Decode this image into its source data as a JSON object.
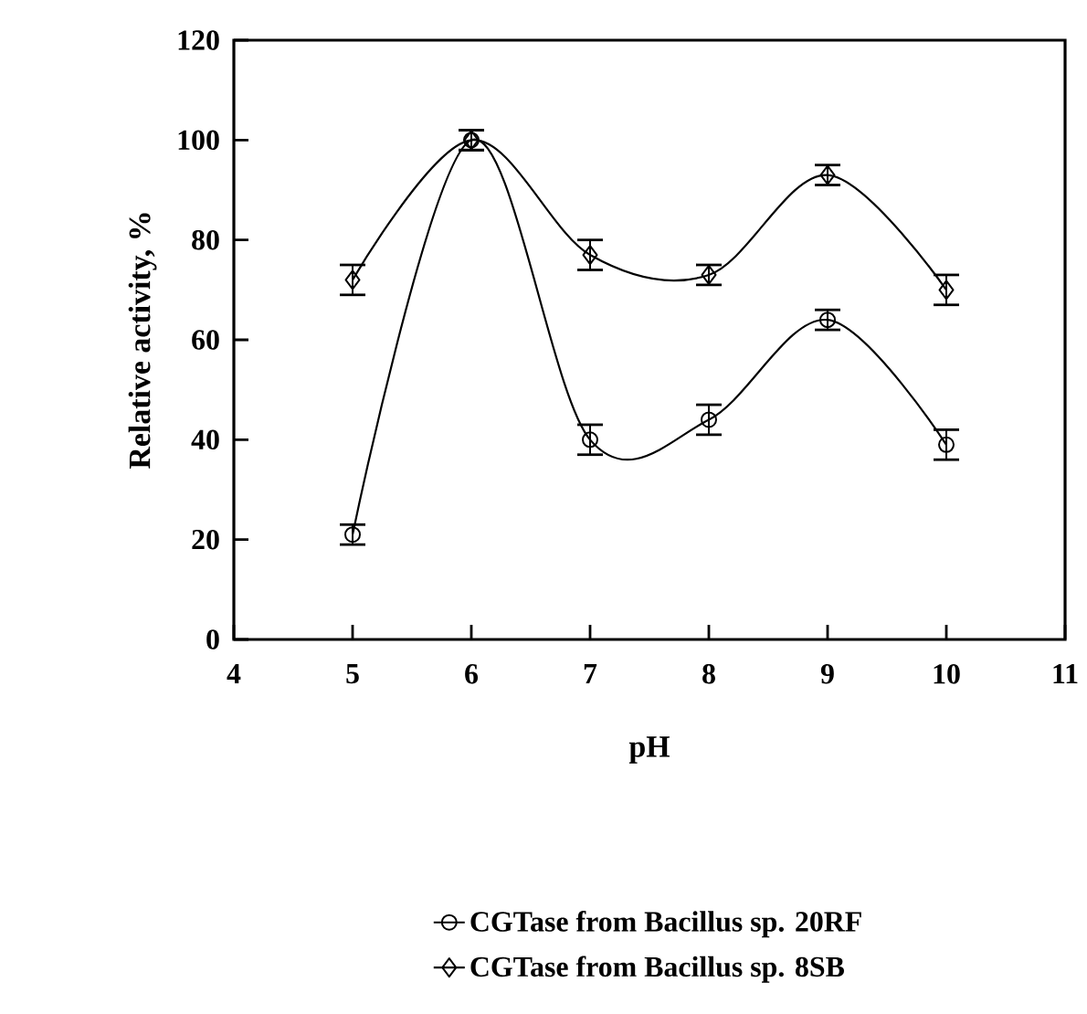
{
  "chart_data": {
    "type": "line",
    "xlabel": "pH",
    "ylabel": "Relative activity, %",
    "x": [
      5,
      6,
      7,
      8,
      9,
      10
    ],
    "series": [
      {
        "name": "CGTase from Bacillus sp. 20RF",
        "color": "#000000",
        "marker": "circle",
        "values": [
          21,
          100,
          40,
          44,
          64,
          39
        ],
        "errors": [
          2,
          2,
          3,
          3,
          2,
          3
        ]
      },
      {
        "name": "CGTase from Bacillus sp. 8SB",
        "color": "#000000",
        "marker": "diamond",
        "values": [
          72,
          100,
          77,
          73,
          93,
          70
        ],
        "errors": [
          3,
          2,
          3,
          2,
          2,
          3
        ]
      }
    ],
    "xlim": [
      4,
      11
    ],
    "xticks": [
      4,
      5,
      6,
      7,
      8,
      9,
      10,
      11
    ],
    "ylim": [
      0,
      120
    ],
    "yticks": [
      0,
      20,
      40,
      60,
      80,
      100,
      120
    ],
    "legend": "bottom"
  }
}
